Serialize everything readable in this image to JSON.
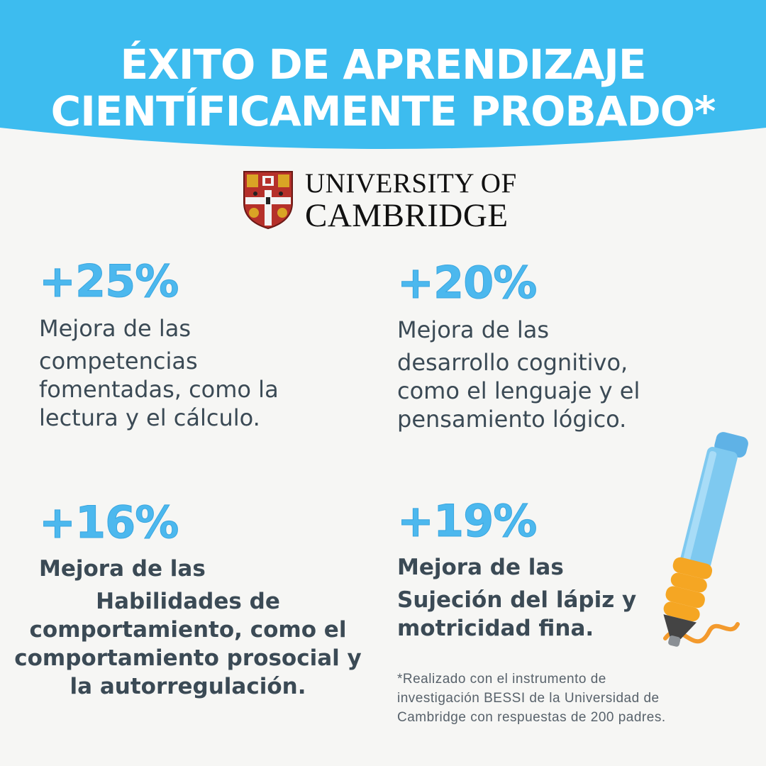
{
  "header": {
    "title_line1": "ÉXITO DE APRENDIZAJE",
    "title_line2": "CIENTÍFICAMENTE PROBADO*",
    "bg_color": "#3dbcef"
  },
  "logo": {
    "line1": "UNIVERSITY OF",
    "line2": "CAMBRIDGE"
  },
  "stats": [
    {
      "value": "+25%",
      "lines": [
        "Mejora de las",
        "competencias",
        "fomentadas, como la",
        "lectura y el cálculo."
      ]
    },
    {
      "value": "+20%",
      "lines": [
        "Mejora de las",
        "desarrollo cognitivo,",
        "como el lenguaje y el",
        "pensamiento lógico."
      ]
    },
    {
      "value": "+16%",
      "lines": [
        "Mejora de las",
        "Habilidades de",
        "comportamiento, como el",
        "comportamiento prosocial y",
        "la autorregulación."
      ]
    },
    {
      "value": "+19%",
      "lines": [
        "Mejora de las",
        "Sujeción del lápiz y",
        "motricidad fina."
      ]
    }
  ],
  "footnote": {
    "lines": [
      "*Realizado con el instrumento de",
      "investigación BESSI de la Universidad de",
      "Cambridge con respuestas de 200 padres."
    ]
  },
  "colors": {
    "accent": "#4cb8ee",
    "text": "#3b4a55",
    "pen_body": "#7ec9f0",
    "pen_grip": "#f5a623"
  }
}
